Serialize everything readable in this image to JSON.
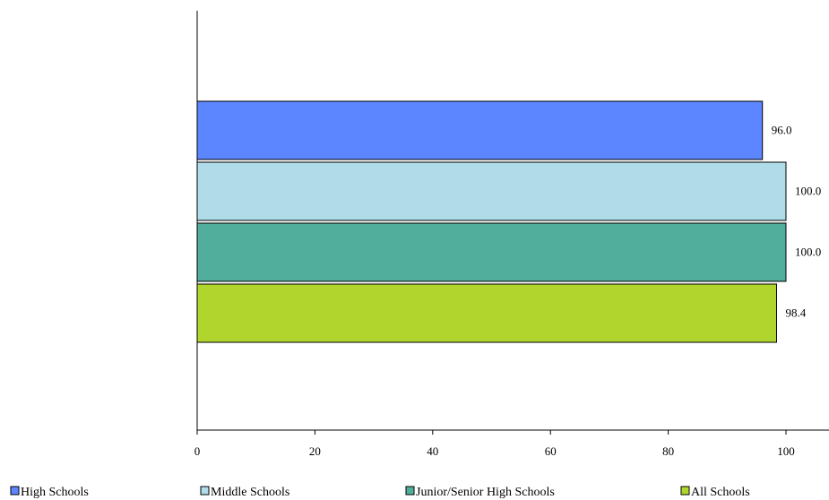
{
  "chart_data": {
    "type": "bar",
    "orientation": "horizontal",
    "categories": [
      ""
    ],
    "series": [
      {
        "name": "High Schools",
        "values": [
          96.0
        ],
        "color": "#5b86ff"
      },
      {
        "name": "Middle Schools",
        "values": [
          100.0
        ],
        "color": "#b0dbe8"
      },
      {
        "name": "Junior/Senior High Schools",
        "values": [
          100.0
        ],
        "color": "#52ae9c"
      },
      {
        "name": "All Schools",
        "values": [
          98.4
        ],
        "color": "#b0d62e"
      }
    ],
    "data_labels": [
      "96.0",
      "100.0",
      "100.0",
      "98.4"
    ],
    "title": "",
    "xlabel": "",
    "ylabel": "",
    "xlim": [
      0,
      100
    ],
    "xticks": [
      0,
      20,
      40,
      60,
      80,
      100
    ],
    "xtick_labels": [
      "0",
      "20",
      "40",
      "60",
      "80",
      "100"
    ],
    "grid": false,
    "legend_position": "bottom"
  }
}
